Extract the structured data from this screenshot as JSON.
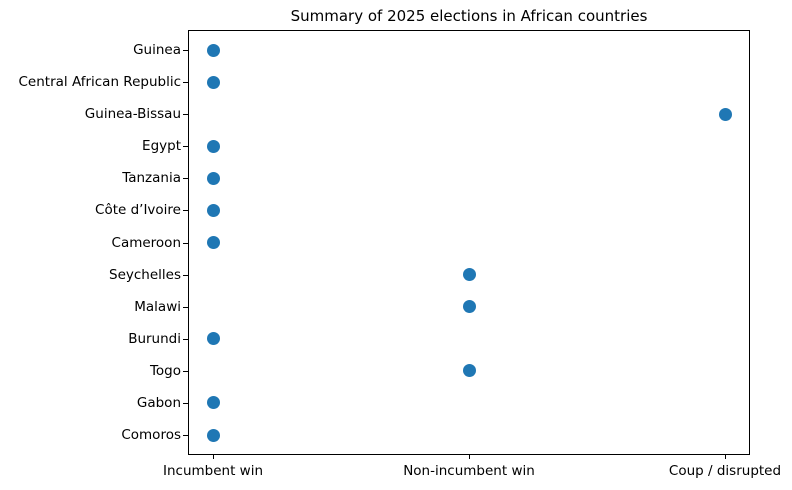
{
  "chart_data": {
    "type": "scatter",
    "title": "Summary of 2025 elections in African countries",
    "x_categories": [
      "Incumbent win",
      "Non-incumbent win",
      "Coup / disrupted"
    ],
    "y_categories_top_to_bottom": [
      "Guinea",
      "Central African Republic",
      "Guinea-Bissau",
      "Egypt",
      "Tanzania",
      "Côte d’Ivoire",
      "Cameroon",
      "Seychelles",
      "Malawi",
      "Burundi",
      "Togo",
      "Gabon",
      "Comoros"
    ],
    "rows": [
      {
        "country": "Guinea",
        "result": "Incumbent win"
      },
      {
        "country": "Central African Republic",
        "result": "Incumbent win"
      },
      {
        "country": "Guinea-Bissau",
        "result": "Coup / disrupted"
      },
      {
        "country": "Egypt",
        "result": "Incumbent win"
      },
      {
        "country": "Tanzania",
        "result": "Incumbent win"
      },
      {
        "country": "Côte d’Ivoire",
        "result": "Incumbent win"
      },
      {
        "country": "Cameroon",
        "result": "Incumbent win"
      },
      {
        "country": "Seychelles",
        "result": "Non-incumbent win"
      },
      {
        "country": "Malawi",
        "result": "Non-incumbent win"
      },
      {
        "country": "Burundi",
        "result": "Incumbent win"
      },
      {
        "country": "Togo",
        "result": "Non-incumbent win"
      },
      {
        "country": "Gabon",
        "result": "Incumbent win"
      },
      {
        "country": "Comoros",
        "result": "Incumbent win"
      }
    ],
    "marker_color": "#1f77b4",
    "marker_size_px": 13,
    "frame_color": "#000000",
    "background_color": "#ffffff",
    "grid": false,
    "legend": "none",
    "xlabel": "",
    "ylabel": ""
  }
}
